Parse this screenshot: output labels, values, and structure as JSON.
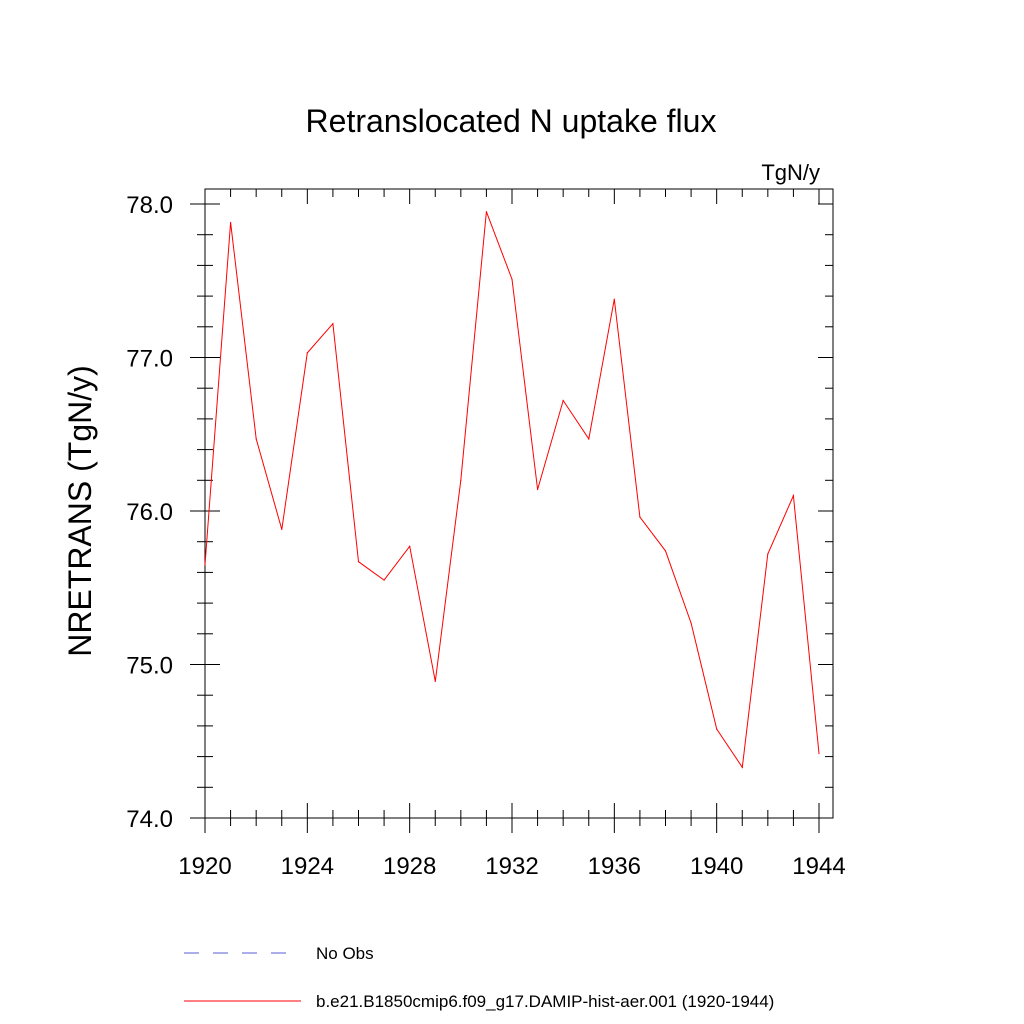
{
  "chart_data": {
    "type": "line",
    "title": "Retranslocated N uptake flux",
    "units": "TgN/y",
    "ylabel": "NRETRANS  (TgN/y)",
    "xlabel": "",
    "xlim": [
      1920,
      1944
    ],
    "ylim": [
      74.0,
      78.0
    ],
    "x_ticks": [
      "1920",
      "1924",
      "1928",
      "1932",
      "1936",
      "1940",
      "1944"
    ],
    "y_ticks": [
      "74.0",
      "75.0",
      "76.0",
      "77.0",
      "78.0"
    ],
    "grid": false,
    "legend_position": "bottom",
    "series": [
      {
        "name": "b.e21.B1850cmip6.f09_g17.DAMIP-hist-aer.001 (1920-1944)",
        "color": "#ff0000",
        "style": "solid",
        "x": [
          1920,
          1921,
          1922,
          1923,
          1924,
          1925,
          1926,
          1927,
          1928,
          1929,
          1930,
          1931,
          1932,
          1933,
          1934,
          1935,
          1936,
          1937,
          1938,
          1939,
          1940,
          1941,
          1942,
          1943,
          1944
        ],
        "y": [
          75.65,
          77.88,
          76.47,
          75.88,
          77.03,
          77.22,
          75.67,
          75.55,
          75.77,
          74.89,
          76.2,
          77.95,
          77.51,
          76.14,
          76.72,
          76.47,
          77.38,
          75.96,
          75.74,
          75.27,
          74.58,
          74.33,
          75.72,
          76.1,
          74.42
        ]
      }
    ],
    "legend": [
      {
        "label": "No Obs",
        "color": "#5b5bd6",
        "style": "dashed"
      },
      {
        "label": "b.e21.B1850cmip6.f09_g17.DAMIP-hist-aer.001 (1920-1944)",
        "color": "#ff0000",
        "style": "solid"
      }
    ]
  }
}
